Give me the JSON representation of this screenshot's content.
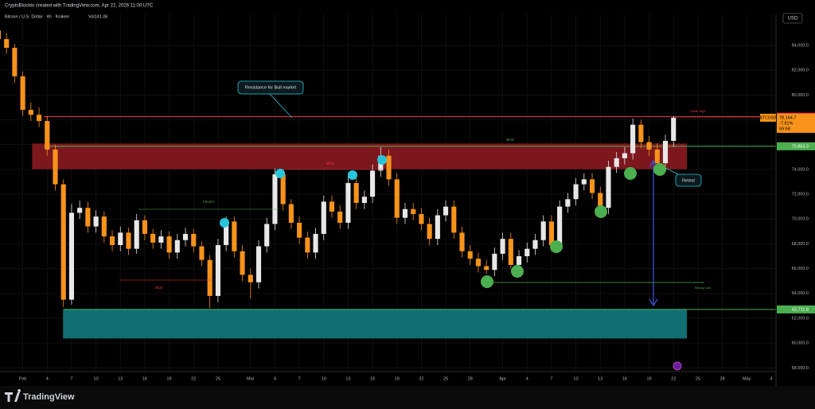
{
  "header": {
    "credit": "CryptoBlockto created with TradingView.com, Apr 22, 2026 11:00 UTC",
    "symbol": "Bitcoin / U.S. Dollar · 4h · Kraken",
    "volume": "Vol141.06",
    "currency": "USD",
    "brand": "TradingView"
  },
  "chart_data": {
    "type": "candlestick",
    "up_color": "#e8e8e8",
    "down_color": "#f7931a",
    "x": [
      -3,
      -2,
      -1,
      0,
      1,
      2,
      3,
      4,
      5,
      6,
      7,
      8,
      9,
      10,
      11,
      12,
      13,
      14,
      15,
      16,
      17,
      18,
      19,
      20,
      21,
      22,
      23,
      24,
      25,
      26,
      27,
      28,
      29,
      30,
      31,
      32,
      33,
      34,
      35,
      36,
      37,
      38,
      39,
      40,
      41,
      42,
      43,
      44,
      45,
      46,
      47,
      48,
      49,
      50,
      51,
      52,
      53,
      54,
      55,
      56,
      57,
      58,
      59,
      60,
      61,
      62,
      63,
      64,
      65,
      66,
      67,
      68,
      69,
      70,
      71,
      72,
      73,
      74,
      75,
      76,
      77,
      78,
      79,
      80
    ],
    "open": [
      85200,
      84500,
      83800,
      81500,
      78800,
      78400,
      77900,
      75600,
      72800,
      63500,
      70500,
      70900,
      69400,
      70200,
      68600,
      67900,
      68900,
      67600,
      69900,
      68800,
      68100,
      68600,
      67300,
      68300,
      68800,
      67800,
      66700,
      63800,
      67900,
      69800,
      67400,
      65500,
      64900,
      67800,
      69600,
      73600,
      71200,
      69700,
      68500,
      67300,
      68800,
      71400,
      70600,
      69700,
      72900,
      71300,
      71800,
      73900,
      75100,
      73200,
      70100,
      70800,
      70400,
      69600,
      68400,
      70300,
      71000,
      68900,
      67400,
      66800,
      66200,
      65900,
      67200,
      68400,
      66300,
      67000,
      67600,
      68300,
      69800,
      67900,
      71000,
      71600,
      72800,
      73200,
      72100,
      70900,
      74200,
      74900,
      75300,
      77600,
      76200,
      75600,
      74500,
      76300
    ],
    "high": [
      85800,
      85000,
      84100,
      81900,
      79400,
      79000,
      78300,
      76000,
      73200,
      71200,
      71500,
      71400,
      70700,
      70600,
      69100,
      69400,
      69300,
      70400,
      70300,
      69200,
      69100,
      69000,
      68800,
      69300,
      69200,
      68200,
      67100,
      68400,
      70200,
      70200,
      67900,
      66000,
      68300,
      70100,
      74100,
      74000,
      71600,
      70200,
      69000,
      69300,
      71900,
      71900,
      71100,
      73700,
      73400,
      72300,
      74400,
      75800,
      75600,
      73700,
      71300,
      71300,
      70900,
      70100,
      70800,
      71500,
      71500,
      69400,
      67900,
      67300,
      66700,
      67700,
      68900,
      68900,
      67500,
      68100,
      68800,
      70300,
      70300,
      71500,
      72100,
      73300,
      73700,
      73700,
      72600,
      74700,
      75400,
      75800,
      78100,
      78000,
      76700,
      76100,
      76800,
      78300
    ],
    "low": [
      84000,
      83300,
      81000,
      78300,
      77900,
      77400,
      75100,
      72300,
      62900,
      63100,
      70000,
      68900,
      68900,
      68100,
      67400,
      67400,
      67100,
      67200,
      68300,
      67600,
      67600,
      66800,
      66800,
      67800,
      67300,
      66200,
      62800,
      63300,
      67400,
      66900,
      65000,
      63600,
      64400,
      67300,
      69100,
      70700,
      69200,
      68000,
      66800,
      66800,
      68300,
      70100,
      69200,
      69200,
      70800,
      70800,
      71300,
      73400,
      72700,
      69600,
      69600,
      69900,
      69100,
      67900,
      67900,
      69800,
      68400,
      66900,
      66300,
      65700,
      65600,
      65400,
      66700,
      66000,
      65800,
      66500,
      67100,
      67800,
      67400,
      67400,
      70500,
      71100,
      72300,
      71600,
      70400,
      70400,
      73700,
      74400,
      74800,
      75700,
      75100,
      74100,
      74000,
      75800
    ],
    "close": [
      84500,
      83800,
      81500,
      78800,
      78400,
      77900,
      75600,
      72800,
      63500,
      70500,
      70900,
      69400,
      70200,
      68600,
      67900,
      68900,
      67600,
      69900,
      68800,
      68100,
      68600,
      67300,
      68300,
      68800,
      67800,
      66700,
      63800,
      67900,
      69800,
      67400,
      65500,
      64900,
      67800,
      69600,
      73600,
      71200,
      69700,
      68500,
      67300,
      68800,
      71400,
      70600,
      69700,
      72900,
      71300,
      71800,
      73900,
      75100,
      73200,
      70100,
      70800,
      70400,
      69600,
      68400,
      70300,
      71000,
      68900,
      67400,
      66800,
      66200,
      65900,
      67200,
      68400,
      66300,
      67000,
      67600,
      68300,
      69800,
      67900,
      71000,
      71600,
      72800,
      73200,
      72100,
      70900,
      74200,
      74900,
      75300,
      77600,
      76200,
      75600,
      74500,
      76300,
      78164.7
    ],
    "xlim": [
      -2.8,
      92.6
    ],
    "xticks": [
      {
        "value": 0,
        "label": "Feb"
      },
      {
        "value": 3,
        "label": "4"
      },
      {
        "value": 6,
        "label": "7"
      },
      {
        "value": 9,
        "label": "10"
      },
      {
        "value": 12,
        "label": "13"
      },
      {
        "value": 15,
        "label": "16"
      },
      {
        "value": 18,
        "label": "19"
      },
      {
        "value": 21,
        "label": "22"
      },
      {
        "value": 24,
        "label": "25"
      },
      {
        "value": 28,
        "label": "Mar"
      },
      {
        "value": 31,
        "label": "4"
      },
      {
        "value": 34,
        "label": "7"
      },
      {
        "value": 37,
        "label": "10"
      },
      {
        "value": 40,
        "label": "13"
      },
      {
        "value": 43,
        "label": "16"
      },
      {
        "value": 46,
        "label": "19"
      },
      {
        "value": 49,
        "label": "22"
      },
      {
        "value": 52,
        "label": "25"
      },
      {
        "value": 55,
        "label": "28"
      },
      {
        "value": 59,
        "label": "Apr"
      },
      {
        "value": 62,
        "label": "4"
      },
      {
        "value": 65,
        "label": "7"
      },
      {
        "value": 68,
        "label": "10"
      },
      {
        "value": 71,
        "label": "13"
      },
      {
        "value": 74,
        "label": "16"
      },
      {
        "value": 77,
        "label": "19"
      },
      {
        "value": 80,
        "label": "22"
      },
      {
        "value": 83,
        "label": "25"
      },
      {
        "value": 86,
        "label": "28"
      },
      {
        "value": 89,
        "label": "May"
      },
      {
        "value": 92,
        "label": "4"
      }
    ],
    "ylim": [
      57700,
      86500
    ],
    "yticks": [
      {
        "value": 58000,
        "label": "58,000.0"
      },
      {
        "value": 60000,
        "label": "60,000.0"
      },
      {
        "value": 62000,
        "label": "62,000.0"
      },
      {
        "value": 64000,
        "label": "64,000.0"
      },
      {
        "value": 66000,
        "label": "66,000.0"
      },
      {
        "value": 68000,
        "label": "68,000.0"
      },
      {
        "value": 70000,
        "label": "70,000.0"
      },
      {
        "value": 72000,
        "label": "72,000.0"
      },
      {
        "value": 74000,
        "label": "74,000.0"
      },
      {
        "value": 76000,
        "label": "76,000.0"
      },
      {
        "value": 78000,
        "label": "78,000.0"
      },
      {
        "value": 80000,
        "label": "80,000.0"
      },
      {
        "value": 82000,
        "label": "82,000.0"
      },
      {
        "value": 84000,
        "label": "84,000.0"
      }
    ],
    "grid": true,
    "levels": [
      {
        "value": 78246,
        "label": "78,246.0",
        "color": "#f23645"
      },
      {
        "value": 75863.3,
        "label": "75,863.3",
        "color": "#4caf50"
      },
      {
        "value": 62711.8,
        "label": "62,711.8",
        "color": "#4caf50"
      }
    ],
    "zones": [
      {
        "x": [
          1.2,
          81.6
        ],
        "y": [
          74050,
          76050
        ],
        "color": "#8b1a22"
      },
      {
        "x": [
          5,
          81.6
        ],
        "y": [
          60400,
          62711.8
        ],
        "color": "#137a80"
      }
    ],
    "last_price": {
      "symbol": "BTCUSD",
      "value": 78164.7,
      "label": "78,164.7",
      "change": "-7.81%",
      "countdown": "59:58"
    },
    "annotations": [
      "Resistance for Bull market",
      "Retest",
      "Weak High",
      "Strong Low",
      "BOS",
      "BOS",
      "BOS",
      "ChoCH"
    ]
  }
}
